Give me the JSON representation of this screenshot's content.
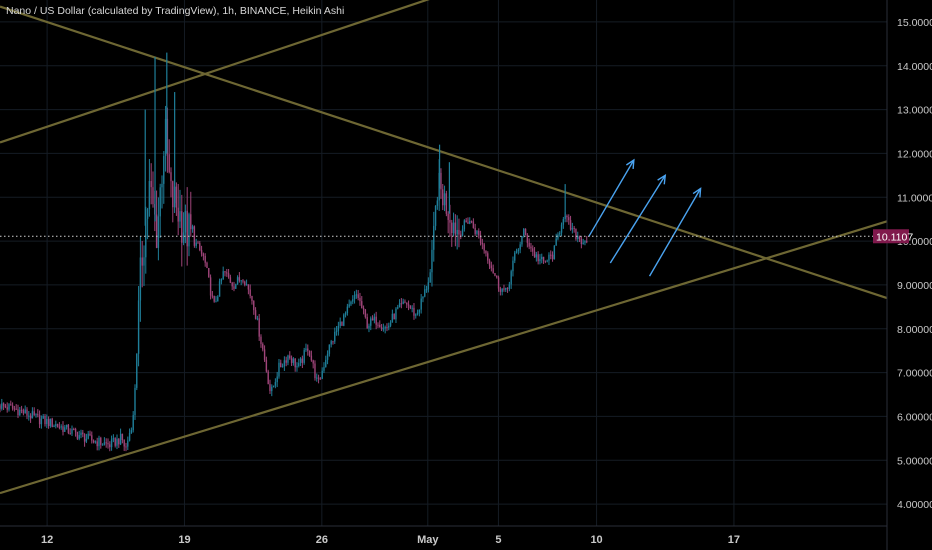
{
  "header": {
    "title": "Nano / US Dollar (calculated by TradingView), 1h, BINANCE, Heikin Ashi"
  },
  "colors": {
    "background": "#000000",
    "grid": "#151c24",
    "axis_text": "#c9c9c9",
    "trendline": "#6e6733",
    "arrow": "#4aa3f0",
    "candle_up": "#1f7f9a",
    "candle_down": "#a0457a",
    "price_line": "#d0d0d0",
    "price_badge": "#80194c"
  },
  "chart_data": {
    "type": "candlestick",
    "title": "Nano / US Dollar (calculated by TradingView), 1h, BINANCE, Heikin Ashi",
    "chart_style": "Heikin Ashi",
    "y_axis_position": "right",
    "ylim": [
      3.5,
      15.5
    ],
    "y_ticks": [
      {
        "v": 15,
        "label": "15.00000"
      },
      {
        "v": 14,
        "label": "14.00000"
      },
      {
        "v": 13,
        "label": "13.00000"
      },
      {
        "v": 12,
        "label": "12.00000"
      },
      {
        "v": 11,
        "label": "11.00000"
      },
      {
        "v": 10,
        "label": "10.00000"
      },
      {
        "v": 9,
        "label": "9.00000"
      },
      {
        "v": 8,
        "label": "8.00000"
      },
      {
        "v": 7,
        "label": "7.00000"
      },
      {
        "v": 6,
        "label": "6.00000"
      },
      {
        "v": 5,
        "label": "5.00000"
      },
      {
        "v": 4,
        "label": "4.00000"
      }
    ],
    "x_ticks": [
      {
        "t": 12,
        "label": "12"
      },
      {
        "t": 19,
        "label": "19"
      },
      {
        "t": 26,
        "label": "26"
      },
      {
        "t": 31.4,
        "label": "May"
      },
      {
        "t": 35,
        "label": "5"
      },
      {
        "t": 40,
        "label": "10"
      },
      {
        "t": 47,
        "label": "17"
      }
    ],
    "xlim": [
      9.6,
      54.8
    ],
    "grid": true,
    "current_price": 10.11,
    "current_price_label": "10.1107",
    "price_path": [
      [
        9.6,
        6.25
      ],
      [
        10.5,
        6.15
      ],
      [
        11.5,
        5.95
      ],
      [
        12.5,
        5.8
      ],
      [
        13.5,
        5.6
      ],
      [
        14.3,
        5.45
      ],
      [
        15.2,
        5.35
      ],
      [
        15.8,
        5.5
      ],
      [
        16.0,
        5.25
      ],
      [
        16.4,
        6.0
      ],
      [
        16.8,
        9.5
      ],
      [
        17.2,
        11.2
      ],
      [
        17.6,
        10.2
      ],
      [
        18.0,
        12.5
      ],
      [
        18.3,
        11.0
      ],
      [
        18.6,
        10.8
      ],
      [
        19.0,
        10.3
      ],
      [
        19.5,
        10.0
      ],
      [
        20.0,
        9.6
      ],
      [
        20.5,
        8.5
      ],
      [
        21.0,
        9.3
      ],
      [
        21.5,
        9.0
      ],
      [
        22.0,
        9.2
      ],
      [
        22.5,
        8.6
      ],
      [
        23.0,
        7.5
      ],
      [
        23.4,
        6.5
      ],
      [
        23.8,
        7.1
      ],
      [
        24.3,
        7.4
      ],
      [
        24.8,
        7.1
      ],
      [
        25.3,
        7.6
      ],
      [
        25.8,
        6.7
      ],
      [
        26.3,
        7.5
      ],
      [
        26.8,
        8.0
      ],
      [
        27.3,
        8.4
      ],
      [
        27.8,
        8.8
      ],
      [
        28.3,
        8.1
      ],
      [
        28.8,
        8.2
      ],
      [
        29.3,
        8.0
      ],
      [
        29.8,
        8.4
      ],
      [
        30.3,
        8.6
      ],
      [
        30.8,
        8.3
      ],
      [
        31.3,
        8.9
      ],
      [
        31.6,
        9.4
      ],
      [
        31.9,
        11.3
      ],
      [
        32.2,
        11.0
      ],
      [
        32.6,
        10.5
      ],
      [
        33.0,
        10.2
      ],
      [
        33.5,
        10.5
      ],
      [
        34.0,
        10.1
      ],
      [
        34.5,
        9.6
      ],
      [
        35.0,
        9.0
      ],
      [
        35.4,
        8.8
      ],
      [
        35.8,
        9.6
      ],
      [
        36.3,
        10.2
      ],
      [
        36.8,
        9.7
      ],
      [
        37.3,
        9.5
      ],
      [
        37.8,
        9.7
      ],
      [
        38.3,
        10.6
      ],
      [
        38.8,
        10.2
      ],
      [
        39.3,
        10.0
      ],
      [
        39.5,
        10.05
      ]
    ],
    "spikes": [
      {
        "t": 17.0,
        "v": 13.0
      },
      {
        "t": 17.5,
        "v": 14.2
      },
      {
        "t": 18.1,
        "v": 14.3
      },
      {
        "t": 18.5,
        "v": 13.4
      },
      {
        "t": 32.0,
        "v": 12.2
      },
      {
        "t": 32.5,
        "v": 11.8
      },
      {
        "t": 38.4,
        "v": 11.3
      }
    ],
    "trendlines": [
      {
        "name": "upper-rising",
        "p1": [
          9.6,
          12.25
        ],
        "p2": [
          33.0,
          15.75
        ]
      },
      {
        "name": "upper-falling",
        "p1": [
          9.6,
          15.35
        ],
        "p2": [
          54.8,
          8.7
        ]
      },
      {
        "name": "lower-rising",
        "p1": [
          9.6,
          4.25
        ],
        "p2": [
          54.8,
          10.45
        ]
      }
    ],
    "arrows": [
      {
        "p1": [
          39.6,
          10.1
        ],
        "p2": [
          41.9,
          11.85
        ]
      },
      {
        "p1": [
          40.7,
          9.5
        ],
        "p2": [
          43.5,
          11.5
        ]
      },
      {
        "p1": [
          42.7,
          9.2
        ],
        "p2": [
          45.3,
          11.2
        ]
      }
    ]
  }
}
